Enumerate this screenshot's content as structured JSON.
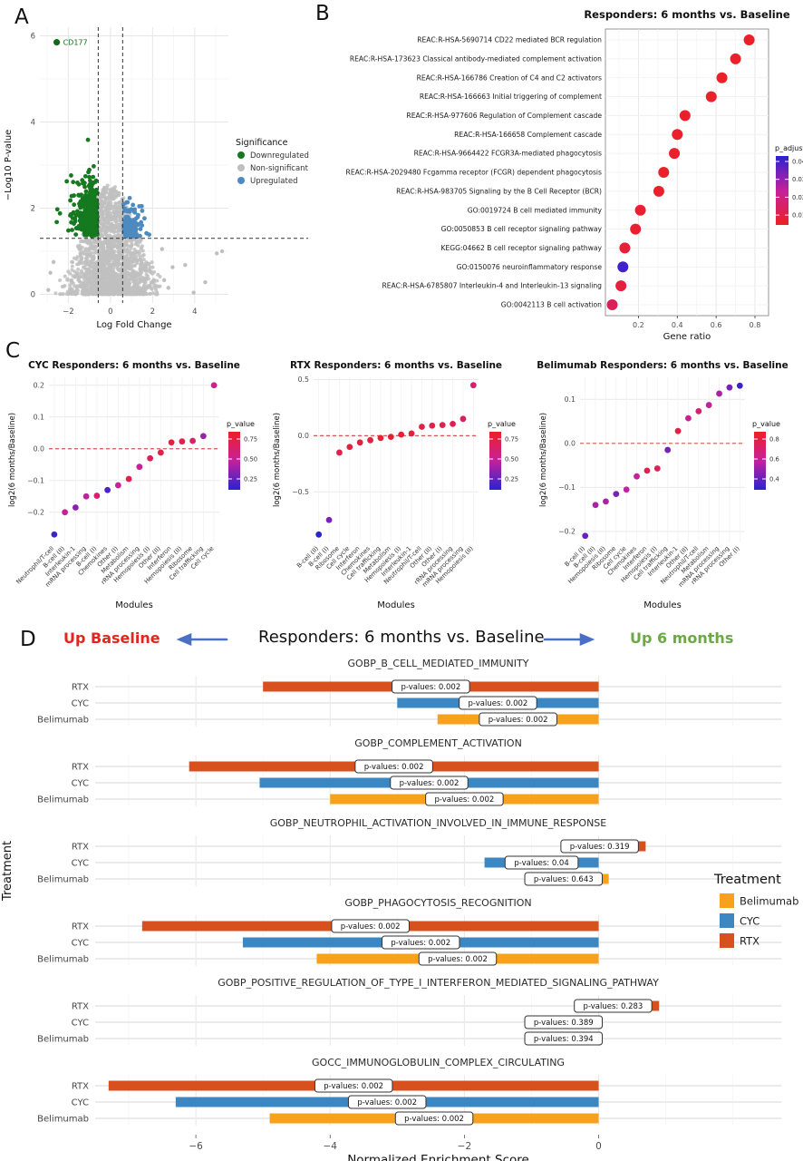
{
  "labels": {
    "panel_a": "A",
    "panel_b": "B",
    "panel_c": "C",
    "panel_d": "D"
  },
  "chart_data": [
    {
      "id": "volcano",
      "type": "scatter",
      "panel": "A",
      "xlabel": "Log Fold Change",
      "ylabel": "-Log10 P-value",
      "xlim": [
        -3.35,
        5.6
      ],
      "ylim": [
        -0.2,
        6.2
      ],
      "xticks": [
        -2,
        0,
        2,
        4
      ],
      "yticks": [
        0,
        2,
        4,
        6
      ],
      "grid": true,
      "thresholds": {
        "vlines": [
          -0.58,
          0.58
        ],
        "hline": 1.3
      },
      "highlight": {
        "gene": "CD177",
        "x": -2.55,
        "y": 5.85,
        "color": "#116b1a"
      },
      "legend": {
        "title": "Significance",
        "items": [
          {
            "label": "Downregulated",
            "color": "#15791f"
          },
          {
            "label": "Non-significant",
            "color": "#bfbfbf"
          },
          {
            "label": "Upregulated",
            "color": "#4d8ac0"
          }
        ]
      },
      "colors": {
        "down": "#15791f",
        "ns": "#bfbfbf",
        "up": "#4d8ac0"
      },
      "points_spec": {
        "seed": 1337,
        "gray": {
          "n": 1900,
          "x_sd": 0.85,
          "x_clip": [
            -2.6,
            2.35
          ],
          "arch_peak": 2.55,
          "arch_width": 3.2,
          "y_pow": 1.55
        },
        "green": {
          "n": 330,
          "x_edge": -0.62,
          "x_sd": 0.55,
          "x_min": -2.55,
          "y_base": 1.34,
          "y_sd": 0.62,
          "y_max": 4.55
        },
        "blue": {
          "n": 92,
          "x_edge": 0.62,
          "x_sd": 0.45,
          "x_max": 2.15,
          "y_base": 1.34,
          "y_sd": 0.36,
          "y_max": 2.55
        },
        "gray_outliers": [
          [
            2.45,
            1.05
          ],
          [
            2.55,
            0.33
          ],
          [
            2.95,
            0.63
          ],
          [
            3.55,
            0.68
          ],
          [
            5.05,
            0.95
          ],
          [
            5.3,
            1.0
          ],
          [
            2.75,
            0.15
          ],
          [
            3.95,
            0.04
          ],
          [
            -2.85,
            0.5
          ],
          [
            -2.7,
            0.75
          ],
          [
            -2.95,
            0.1
          ],
          [
            4.5,
            0.28
          ]
        ]
      }
    },
    {
      "id": "enrichment_dotplot",
      "type": "scatter",
      "panel": "B",
      "title": "Responders: 6 months vs. Baseline",
      "xlabel": "Gene ratio",
      "xticks": [
        0.2,
        0.4,
        0.6,
        0.8
      ],
      "xlim": [
        0.03,
        0.87
      ],
      "legend": {
        "title": "p_adjust",
        "ticks": [
          "0.04",
          "0.03",
          "0.02",
          "0.01"
        ],
        "domain": [
          0.004,
          0.042
        ]
      },
      "points": [
        {
          "label": "REAC:R-HSA-5690714 CD22 mediated BCR regulation",
          "gene_ratio": 0.77,
          "p_adjust": 0.005
        },
        {
          "label": "REAC:R-HSA-173623 Classical antibody-mediated complement activation",
          "gene_ratio": 0.7,
          "p_adjust": 0.005
        },
        {
          "label": "REAC:R-HSA-166786 Creation of C4 and C2 activators",
          "gene_ratio": 0.63,
          "p_adjust": 0.005
        },
        {
          "label": "REAC:R-HSA-166663 Initial triggering of complement",
          "gene_ratio": 0.575,
          "p_adjust": 0.005
        },
        {
          "label": "REAC:R-HSA-977606 Regulation of Complement cascade",
          "gene_ratio": 0.44,
          "p_adjust": 0.005
        },
        {
          "label": "REAC:R-HSA-166658 Complement cascade",
          "gene_ratio": 0.4,
          "p_adjust": 0.005
        },
        {
          "label": "REAC:R-HSA-9664422 FCGR3A-mediated phagocytosis",
          "gene_ratio": 0.385,
          "p_adjust": 0.005
        },
        {
          "label": "REAC:R-HSA-2029480 Fcgamma receptor (FCGR) dependent phagocytosis",
          "gene_ratio": 0.33,
          "p_adjust": 0.005
        },
        {
          "label": "REAC:R-HSA-983705 Signaling by the B Cell Receptor (BCR)",
          "gene_ratio": 0.305,
          "p_adjust": 0.005
        },
        {
          "label": "GO:0019724 B cell mediated immunity",
          "gene_ratio": 0.21,
          "p_adjust": 0.006
        },
        {
          "label": "GO:0050853 B cell receptor signaling pathway",
          "gene_ratio": 0.185,
          "p_adjust": 0.006
        },
        {
          "label": "KEGG:04662 B cell receptor signaling pathway",
          "gene_ratio": 0.13,
          "p_adjust": 0.007
        },
        {
          "label": "GO:0150076 neuroinflammatory response",
          "gene_ratio": 0.12,
          "p_adjust": 0.039
        },
        {
          "label": "REAC:R-HSA-6785807 Interleukin-4 and Interleukin-13 signaling",
          "gene_ratio": 0.11,
          "p_adjust": 0.008
        },
        {
          "label": "GO:0042113 B cell activation",
          "gene_ratio": 0.065,
          "p_adjust": 0.012
        }
      ]
    },
    {
      "id": "cyc_modules",
      "type": "scatter",
      "panel": "C",
      "title": "CYC Responders: 6 months vs. Baseline",
      "xlabel": "Modules",
      "ylabel": "log2(6 months/Baseline)",
      "yticks": [
        0.2,
        0.1,
        0.0,
        -0.1,
        -0.2
      ],
      "ylim": [
        -0.295,
        0.225
      ],
      "refline": 0,
      "legend": {
        "title": "p_value",
        "ticks": [
          "0.75",
          "0.50",
          "0.25"
        ],
        "domain": [
          0.05,
          1.0
        ]
      },
      "points": [
        {
          "label": "Neutrophil/T-cell",
          "y": -0.27,
          "p": 0.12
        },
        {
          "label": "B-cell (II)",
          "y": -0.2,
          "p": 0.55
        },
        {
          "label": "Interleukin-1",
          "y": -0.185,
          "p": 0.35
        },
        {
          "label": "mRNA processing",
          "y": -0.15,
          "p": 0.5
        },
        {
          "label": "B-cell (I)",
          "y": -0.148,
          "p": 0.7
        },
        {
          "label": "Chemokines",
          "y": -0.13,
          "p": 0.15
        },
        {
          "label": "Other (I)",
          "y": -0.115,
          "p": 0.55
        },
        {
          "label": "Metabolism",
          "y": -0.095,
          "p": 0.85
        },
        {
          "label": "rRNA processing",
          "y": -0.057,
          "p": 0.55
        },
        {
          "label": "Hemopoiesis (I)",
          "y": -0.03,
          "p": 0.8
        },
        {
          "label": "Other (II)",
          "y": -0.012,
          "p": 0.85
        },
        {
          "label": "Interferon",
          "y": 0.02,
          "p": 0.9
        },
        {
          "label": "Hemopoiesis (II)",
          "y": 0.023,
          "p": 0.85
        },
        {
          "label": "Ribosome",
          "y": 0.025,
          "p": 0.75
        },
        {
          "label": "Cell trafficking",
          "y": 0.04,
          "p": 0.4
        },
        {
          "label": "Cell cycle",
          "y": 0.2,
          "p": 0.6
        }
      ]
    },
    {
      "id": "rtx_modules",
      "type": "scatter",
      "panel": "C",
      "title": "RTX Responders: 6 months vs. Baseline",
      "xlabel": "Modules",
      "ylabel": "log2(6 months/Baseline)",
      "yticks": [
        0.5,
        0.0,
        -0.5
      ],
      "ylim": [
        -0.95,
        0.52
      ],
      "refline": 0,
      "legend": {
        "title": "p_value",
        "ticks": [
          "0.75",
          "0.50",
          "0.25"
        ],
        "domain": [
          0.05,
          1.0
        ]
      },
      "points": [
        {
          "label": "B-cell (II)",
          "y": -0.88,
          "p": 0.06
        },
        {
          "label": "B-cell (I)",
          "y": -0.75,
          "p": 0.3
        },
        {
          "label": "Ribosome",
          "y": -0.15,
          "p": 0.85
        },
        {
          "label": "Cell cycle",
          "y": -0.1,
          "p": 0.9
        },
        {
          "label": "Interferon",
          "y": -0.06,
          "p": 0.9
        },
        {
          "label": "Chemokines",
          "y": -0.04,
          "p": 0.9
        },
        {
          "label": "Cell trafficking",
          "y": -0.02,
          "p": 0.95
        },
        {
          "label": "Metabolism",
          "y": -0.01,
          "p": 0.95
        },
        {
          "label": "Hemopoiesis (I)",
          "y": 0.01,
          "p": 0.9
        },
        {
          "label": "Interleukin-1",
          "y": 0.02,
          "p": 0.9
        },
        {
          "label": "Neutrophil/T-cell",
          "y": 0.08,
          "p": 0.85
        },
        {
          "label": "Other (II)",
          "y": 0.09,
          "p": 0.85
        },
        {
          "label": "Other (I)",
          "y": 0.095,
          "p": 0.85
        },
        {
          "label": "rRNA processing",
          "y": 0.105,
          "p": 0.8
        },
        {
          "label": "mRNA processing",
          "y": 0.15,
          "p": 0.8
        },
        {
          "label": "Hemopoiesis (II)",
          "y": 0.45,
          "p": 0.7
        }
      ]
    },
    {
      "id": "belimumab_modules",
      "type": "scatter",
      "panel": "C",
      "title": "Belimumab Responders: 6 months vs. Baseline",
      "xlabel": "Modules",
      "ylabel": "log2(6 months/Baseline)",
      "yticks": [
        0.1,
        0.0,
        -0.1,
        -0.2
      ],
      "ylim": [
        -0.225,
        0.15
      ],
      "refline": 0,
      "legend": {
        "title": "p_value",
        "ticks": [
          "0.8",
          "0.6",
          "0.4"
        ],
        "domain": [
          0.3,
          0.9
        ]
      },
      "points": [
        {
          "label": "B-cell (I)",
          "y": -0.21,
          "p": 0.42
        },
        {
          "label": "B-cell (II)",
          "y": -0.14,
          "p": 0.55
        },
        {
          "label": "Hemopoiesis (II)",
          "y": -0.132,
          "p": 0.55
        },
        {
          "label": "Ribosome",
          "y": -0.115,
          "p": 0.45
        },
        {
          "label": "Cell cycle",
          "y": -0.105,
          "p": 0.6
        },
        {
          "label": "Chemokines",
          "y": -0.075,
          "p": 0.6
        },
        {
          "label": "Interferon",
          "y": -0.062,
          "p": 0.8
        },
        {
          "label": "Hemopoiesis (I)",
          "y": -0.057,
          "p": 0.78
        },
        {
          "label": "Cell trafficking",
          "y": -0.015,
          "p": 0.45
        },
        {
          "label": "Interleukin-1",
          "y": 0.028,
          "p": 0.82
        },
        {
          "label": "Other (II)",
          "y": 0.057,
          "p": 0.62
        },
        {
          "label": "Neutrophil/T-cell",
          "y": 0.073,
          "p": 0.72
        },
        {
          "label": "Metabolism",
          "y": 0.087,
          "p": 0.6
        },
        {
          "label": "mRNA processing",
          "y": 0.113,
          "p": 0.55
        },
        {
          "label": "rRNA processing",
          "y": 0.127,
          "p": 0.45
        },
        {
          "label": "Other (I)",
          "y": 0.131,
          "p": 0.33
        }
      ]
    },
    {
      "id": "gsea_bars",
      "type": "bar",
      "panel": "D",
      "orientation": "horizontal",
      "header": {
        "title": "Responders: 6 months vs. Baseline",
        "left_label": "Up Baseline",
        "right_label": "Up 6 months",
        "left_color": "#e0261d",
        "right_color": "#6ca946",
        "arrow_color": "#4a6fc4"
      },
      "xlabel": "Normalized Enrichment Score",
      "ylabel": "Treatment",
      "xticks": [
        -6,
        -4,
        -2,
        0
      ],
      "xlim": [
        -7.5,
        2.72
      ],
      "legend": {
        "title": "Treatment",
        "items": [
          {
            "label": "Belimumab",
            "color": "#f8a11c"
          },
          {
            "label": "CYC",
            "color": "#3c87c2"
          },
          {
            "label": "RTX",
            "color": "#d8501d"
          }
        ]
      },
      "treatment_colors": {
        "RTX": "#d8501d",
        "CYC": "#3c87c2",
        "Belimumab": "#f8a11c"
      },
      "groups": [
        {
          "title": "GOBP_B_CELL_MEDIATED_IMMUNITY",
          "bars": [
            {
              "treatment": "RTX",
              "nes": -5.0,
              "p_label": "p-values: 0.002"
            },
            {
              "treatment": "CYC",
              "nes": -3.0,
              "p_label": "p-values: 0.002"
            },
            {
              "treatment": "Belimumab",
              "nes": -2.4,
              "p_label": "p-values: 0.002"
            }
          ]
        },
        {
          "title": "GOBP_COMPLEMENT_ACTIVATION",
          "bars": [
            {
              "treatment": "RTX",
              "nes": -6.1,
              "p_label": "p-values: 0.002"
            },
            {
              "treatment": "CYC",
              "nes": -5.05,
              "p_label": "p-values: 0.002"
            },
            {
              "treatment": "Belimumab",
              "nes": -4.0,
              "p_label": "p-values: 0.002"
            }
          ]
        },
        {
          "title": "GOBP_NEUTROPHIL_ACTIVATION_INVOLVED_IN_IMMUNE_RESPONSE",
          "bars": [
            {
              "treatment": "RTX",
              "nes": 0.7,
              "p_label": "p-values: 0.319"
            },
            {
              "treatment": "CYC",
              "nes": -1.7,
              "p_label": "p-values: 0.04"
            },
            {
              "treatment": "Belimumab",
              "nes": 0.15,
              "p_label": "p-values: 0.643"
            }
          ]
        },
        {
          "title": "GOBP_PHAGOCYTOSIS_RECOGNITION",
          "bars": [
            {
              "treatment": "RTX",
              "nes": -6.8,
              "p_label": "p-values: 0.002"
            },
            {
              "treatment": "CYC",
              "nes": -5.3,
              "p_label": "p-values: 0.002"
            },
            {
              "treatment": "Belimumab",
              "nes": -4.2,
              "p_label": "p-values: 0.002"
            }
          ]
        },
        {
          "title": "GOBP_POSITIVE_REGULATION_OF_TYPE_I_INTERFERON_MEDIATED_SIGNALING_PATHWAY",
          "bars": [
            {
              "treatment": "RTX",
              "nes": 0.9,
              "p_label": "p-values: 0.283"
            },
            {
              "treatment": "CYC",
              "nes": -0.12,
              "p_label": "p-values: 0.389"
            },
            {
              "treatment": "Belimumab",
              "nes": -0.12,
              "p_label": "p-values: 0.394"
            }
          ]
        },
        {
          "title": "GOCC_IMMUNOGLOBULIN_COMPLEX_CIRCULATING",
          "bars": [
            {
              "treatment": "RTX",
              "nes": -7.3,
              "p_label": "p-values: 0.002"
            },
            {
              "treatment": "CYC",
              "nes": -6.3,
              "p_label": "p-values: 0.002"
            },
            {
              "treatment": "Belimumab",
              "nes": -4.9,
              "p_label": "p-values: 0.002"
            }
          ]
        }
      ]
    }
  ]
}
